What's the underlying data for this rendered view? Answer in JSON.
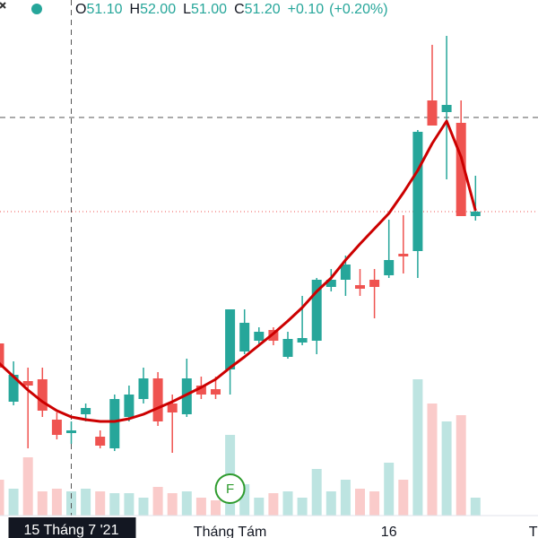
{
  "chart_data": {
    "type": "candlestick",
    "legend": [
      {
        "key": "O",
        "value": {
          "value": 51.1,
          "label": "51.10"
        }
      },
      {
        "key": "H",
        "value": {
          "value": 52.0,
          "label": "52.00"
        }
      },
      {
        "key": "L",
        "value": {
          "value": 51.0,
          "label": "51.00"
        }
      },
      {
        "key": "C",
        "value": {
          "value": 51.2,
          "label": "51.20"
        }
      }
    ],
    "change": {
      "value": 0.1,
      "label": "+0.10"
    },
    "change_pct": {
      "value": 0.2,
      "label": "(+0.20%)"
    },
    "open": [
      48.26,
      46.96,
      47.42,
      47.46,
      46.56,
      46.26,
      46.68,
      46.18,
      45.92,
      46.62,
      47.02,
      47.48,
      46.92,
      46.68,
      47.32,
      47.24,
      47.68,
      48.08,
      48.32,
      48.56,
      47.96,
      48.28,
      48.32,
      49.52,
      49.68,
      49.56,
      49.68,
      49.78,
      50.26,
      50.32,
      53.68,
      53.42,
      53.18,
      51.1
    ],
    "high": [
      48.42,
      47.86,
      47.72,
      47.72,
      46.72,
      46.52,
      46.92,
      46.32,
      47.12,
      47.32,
      47.72,
      47.62,
      47.12,
      47.92,
      47.52,
      47.52,
      49.02,
      49.02,
      48.62,
      48.62,
      48.52,
      49.32,
      49.72,
      49.92,
      50.22,
      49.92,
      49.92,
      51.02,
      51.12,
      53.02,
      54.92,
      55.12,
      53.68,
      52.0
    ],
    "low": [
      47.52,
      46.88,
      45.92,
      46.62,
      46.12,
      46.02,
      46.52,
      45.92,
      45.86,
      46.52,
      46.92,
      46.42,
      45.82,
      46.62,
      47.02,
      47.02,
      47.12,
      48.02,
      48.22,
      48.22,
      47.92,
      48.22,
      48.02,
      49.42,
      49.32,
      49.32,
      48.82,
      49.72,
      49.82,
      49.72,
      53.12,
      51.92,
      51.1,
      51.0
    ],
    "close": [
      47.72,
      47.56,
      47.32,
      46.76,
      46.22,
      46.32,
      46.82,
      45.98,
      47.02,
      47.12,
      47.48,
      46.52,
      46.72,
      47.48,
      47.12,
      47.12,
      49.02,
      48.72,
      48.52,
      48.32,
      48.36,
      48.38,
      49.68,
      49.68,
      50.02,
      49.48,
      49.52,
      50.12,
      50.2,
      52.98,
      53.12,
      53.58,
      51.1,
      51.2
    ],
    "volume": [
      40000,
      30000,
      65000,
      27000,
      30000,
      27000,
      30000,
      27000,
      25000,
      25000,
      20000,
      32000,
      25000,
      27000,
      20000,
      17000,
      90000,
      35000,
      20000,
      25000,
      27000,
      20000,
      52000,
      27000,
      40000,
      30000,
      27000,
      59000,
      40000,
      152000,
      125000,
      105000,
      112000,
      20000
    ],
    "ma": [
      47.82,
      47.52,
      47.22,
      46.96,
      46.76,
      46.62,
      46.56,
      46.52,
      46.52,
      46.58,
      46.68,
      46.82,
      46.96,
      47.12,
      47.28,
      47.46,
      47.72,
      47.96,
      48.22,
      48.48,
      48.76,
      49.06,
      49.42,
      49.72,
      50.12,
      50.48,
      50.82,
      51.16,
      51.62,
      52.12,
      52.72,
      53.22,
      52.42,
      51.22
    ],
    "ylim": [
      44.42,
      55.92
    ],
    "volume_lim": [
      0,
      575000
    ],
    "up_color": "#26a69a",
    "down_color": "#ef5350",
    "ma_color": "#cc0000",
    "x_labels": [
      {
        "index": 5,
        "label": "15 Tháng 7 '21"
      },
      {
        "index": 16,
        "label": "Tháng Tám"
      },
      {
        "index": 27,
        "label": "16"
      },
      {
        "index": 37,
        "label": "T"
      }
    ],
    "events": [
      {
        "index": 16,
        "label": "F"
      }
    ],
    "crosshair": {
      "index": 5,
      "price": 53.3
    }
  }
}
